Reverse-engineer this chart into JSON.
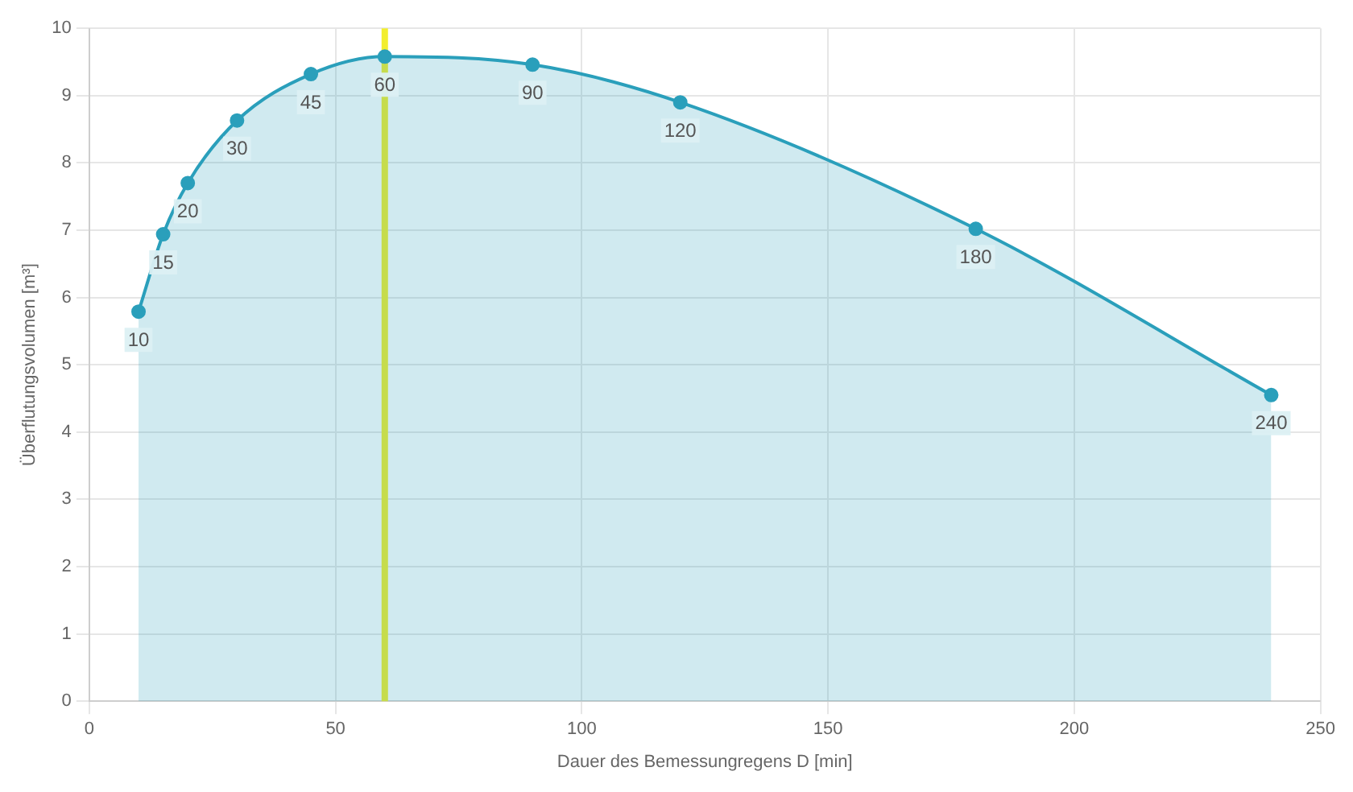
{
  "chart_data": {
    "type": "area",
    "xlabel": "Dauer des Bemessungregens D [min]",
    "ylabel": "Überflutungsvolumen [m³]",
    "x": [
      10,
      15,
      20,
      30,
      45,
      60,
      90,
      120,
      180,
      240
    ],
    "series": [
      {
        "color": "#2a9fbb",
        "values": [
          5.79,
          6.94,
          7.7,
          8.63,
          9.32,
          9.58,
          9.46,
          8.9,
          7.02,
          4.55
        ]
      }
    ],
    "annotations": [
      {
        "text": "10",
        "x": 10,
        "y": 5.79
      },
      {
        "text": "15",
        "x": 15,
        "y": 6.94
      },
      {
        "text": "20",
        "x": 20,
        "y": 7.7
      },
      {
        "text": "30",
        "x": 30,
        "y": 8.63
      },
      {
        "text": "45",
        "x": 45,
        "y": 9.32
      },
      {
        "text": "60",
        "x": 60,
        "y": 9.58
      },
      {
        "text": "90",
        "x": 90,
        "y": 9.46
      },
      {
        "text": "120",
        "x": 120,
        "y": 8.9
      },
      {
        "text": "180",
        "x": 180,
        "y": 7.02
      },
      {
        "text": "240",
        "x": 240,
        "y": 4.55
      }
    ],
    "xlim": [
      0,
      250
    ],
    "xticks": [
      0,
      50,
      100,
      150,
      200,
      250
    ],
    "ylim": [
      0,
      10
    ],
    "yticks": [
      0,
      1,
      2,
      3,
      4,
      5,
      6,
      7,
      8,
      9,
      10
    ],
    "ref_lines": [
      {
        "axis": "x",
        "value": 60,
        "color": "#f2ee2e"
      }
    ],
    "grid": true,
    "legend": false,
    "marker": "circle"
  }
}
